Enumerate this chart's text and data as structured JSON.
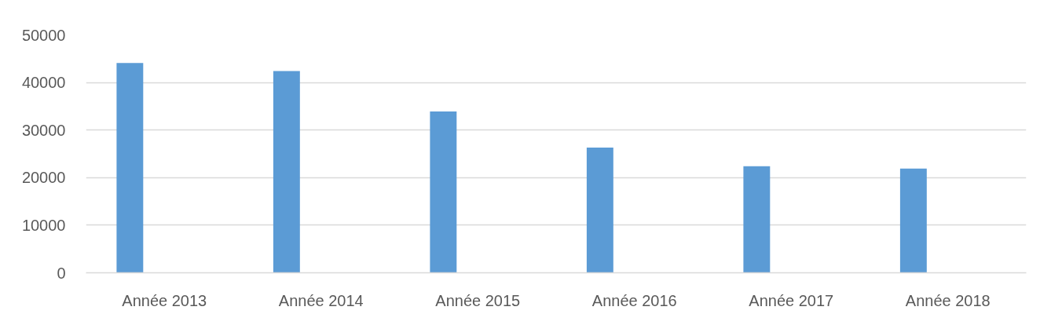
{
  "chart_data": {
    "type": "bar",
    "categories": [
      "Année 2013",
      "Année 2014",
      "Année 2015",
      "Année 2016",
      "Année 2017",
      "Année 2018"
    ],
    "values": [
      44100,
      42400,
      33900,
      26300,
      22400,
      21900
    ],
    "color": "#5b9bd5",
    "ylim": [
      0,
      50000
    ],
    "yticks": [
      0,
      10000,
      20000,
      30000,
      40000,
      50000
    ],
    "grid": "y"
  }
}
